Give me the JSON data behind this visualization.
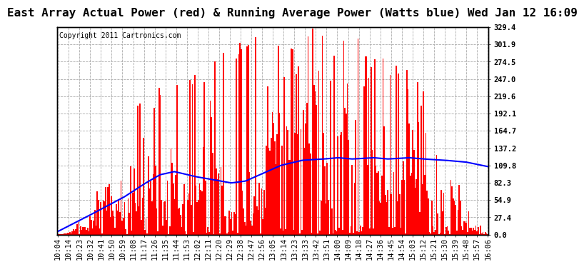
{
  "title": "East Array Actual Power (red) & Running Average Power (Watts blue) Wed Jan 12 16:09",
  "copyright": "Copyright 2011 Cartronics.com",
  "ylabel_right_ticks": [
    0.0,
    27.4,
    54.9,
    82.3,
    109.8,
    137.2,
    164.7,
    192.1,
    219.6,
    247.0,
    274.5,
    301.9,
    329.4
  ],
  "ymax": 329.4,
  "ymin": 0.0,
  "background_color": "#ffffff",
  "plot_bg_color": "#ffffff",
  "grid_color": "#aaaaaa",
  "red_color": "#ff0000",
  "blue_color": "#0000ff",
  "title_fontsize": 11.5,
  "copyright_fontsize": 7,
  "tick_fontsize": 7.5,
  "x_labels": [
    "10:04",
    "10:14",
    "10:23",
    "10:32",
    "10:41",
    "10:50",
    "10:59",
    "11:08",
    "11:17",
    "11:26",
    "11:35",
    "11:44",
    "11:53",
    "12:02",
    "12:11",
    "12:20",
    "12:29",
    "12:38",
    "12:47",
    "12:56",
    "13:05",
    "13:14",
    "13:23",
    "13:33",
    "13:42",
    "13:51",
    "14:00",
    "14:09",
    "14:18",
    "14:27",
    "14:36",
    "14:45",
    "14:54",
    "15:03",
    "15:12",
    "15:21",
    "15:30",
    "15:39",
    "15:48",
    "15:57",
    "16:06"
  ],
  "blue_keypoints_h": [
    10.067,
    10.5,
    11.0,
    11.3,
    11.5,
    11.7,
    12.0,
    12.2,
    12.5,
    12.7,
    13.0,
    13.2,
    13.5,
    13.8,
    14.0,
    14.2,
    14.5,
    14.7,
    15.0,
    15.2,
    15.5,
    15.8,
    16.1
  ],
  "blue_keypoints_v": [
    5,
    30,
    60,
    82,
    95,
    100,
    92,
    88,
    82,
    85,
    100,
    110,
    118,
    120,
    122,
    120,
    122,
    120,
    122,
    120,
    118,
    115,
    108
  ]
}
